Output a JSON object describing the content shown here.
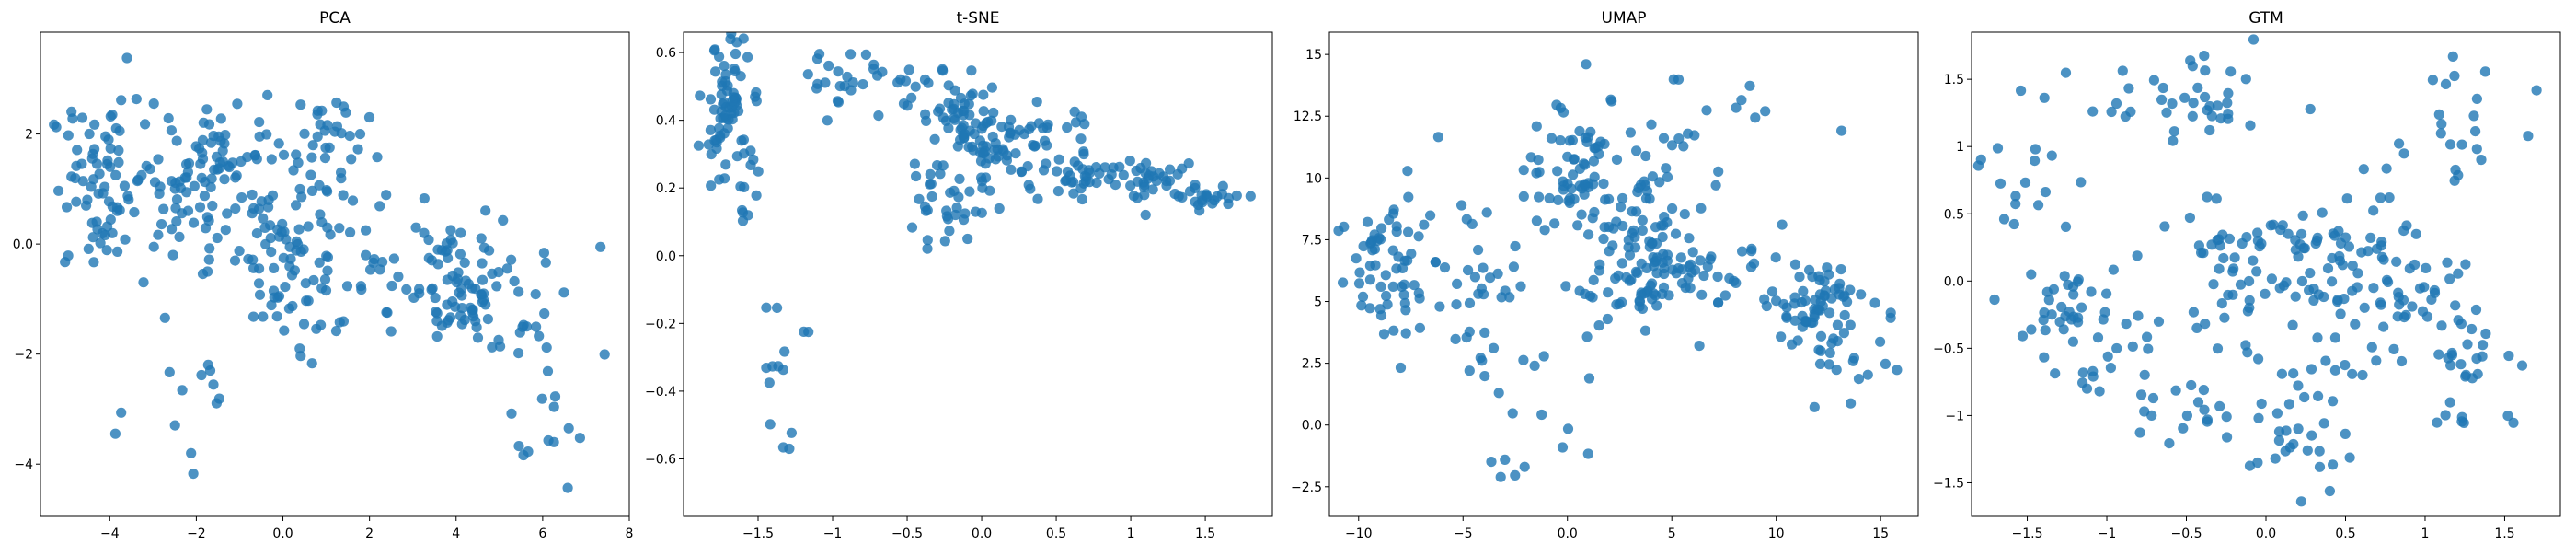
{
  "chart_data": [
    {
      "type": "scatter",
      "title": "PCA",
      "xlabel": "",
      "ylabel": "",
      "xlim": [
        -5.6,
        8.0
      ],
      "ylim": [
        -4.95,
        3.85
      ],
      "xticks": [
        -4,
        -2,
        0,
        2,
        4,
        6,
        8
      ],
      "yticks": [
        -4,
        -2,
        0,
        2
      ],
      "grid": false,
      "color": "#1f77b4",
      "clusters": [
        {
          "x": -4.2,
          "y": 1.0,
          "sx": 0.6,
          "sy": 0.8,
          "n": 70
        },
        {
          "x": -2.5,
          "y": 0.8,
          "sx": 0.7,
          "sy": 0.7,
          "n": 50
        },
        {
          "x": -1.2,
          "y": 1.5,
          "sx": 0.6,
          "sy": 0.6,
          "n": 55
        },
        {
          "x": 0.0,
          "y": 0.0,
          "sx": 0.5,
          "sy": 0.8,
          "n": 60
        },
        {
          "x": 1.0,
          "y": 1.8,
          "sx": 0.5,
          "sy": 0.5,
          "n": 35
        },
        {
          "x": 1.5,
          "y": -0.5,
          "sx": 0.8,
          "sy": 0.7,
          "n": 40
        },
        {
          "x": 4.0,
          "y": -0.8,
          "sx": 0.6,
          "sy": 0.6,
          "n": 80
        },
        {
          "x": 5.5,
          "y": -1.2,
          "sx": 0.8,
          "sy": 1.0,
          "n": 25
        },
        {
          "x": -2.5,
          "y": -3.0,
          "sx": 1.0,
          "sy": 1.0,
          "n": 16
        },
        {
          "x": 6.5,
          "y": -3.0,
          "sx": 0.7,
          "sy": 1.0,
          "n": 8
        }
      ]
    },
    {
      "type": "scatter",
      "title": "t-SNE",
      "xlabel": "",
      "ylabel": "",
      "xlim": [
        -2.0,
        1.95
      ],
      "ylim": [
        -0.77,
        0.66
      ],
      "xticks": [
        -1.5,
        -1.0,
        -0.5,
        0.0,
        0.5,
        1.0,
        1.5
      ],
      "yticks": [
        -0.6,
        -0.4,
        -0.2,
        0.0,
        0.2,
        0.4,
        0.6
      ],
      "grid": false,
      "color": "#1f77b4",
      "clusters": [
        {
          "x": -1.72,
          "y": 0.45,
          "sx": 0.08,
          "sy": 0.1,
          "n": 70
        },
        {
          "x": -1.6,
          "y": 0.2,
          "sx": 0.06,
          "sy": 0.08,
          "n": 15
        },
        {
          "x": -1.3,
          "y": -0.3,
          "sx": 0.1,
          "sy": 0.2,
          "n": 14
        },
        {
          "x": -0.8,
          "y": 0.52,
          "sx": 0.2,
          "sy": 0.04,
          "n": 30
        },
        {
          "x": -0.15,
          "y": 0.42,
          "sx": 0.15,
          "sy": 0.06,
          "n": 45
        },
        {
          "x": 0.0,
          "y": 0.28,
          "sx": 0.15,
          "sy": 0.06,
          "n": 45
        },
        {
          "x": -0.3,
          "y": 0.14,
          "sx": 0.15,
          "sy": 0.05,
          "n": 30
        },
        {
          "x": 0.35,
          "y": 0.35,
          "sx": 0.2,
          "sy": 0.05,
          "n": 30
        },
        {
          "x": 0.7,
          "y": 0.24,
          "sx": 0.2,
          "sy": 0.03,
          "n": 35
        },
        {
          "x": 1.15,
          "y": 0.22,
          "sx": 0.15,
          "sy": 0.03,
          "n": 35
        },
        {
          "x": 1.55,
          "y": 0.17,
          "sx": 0.12,
          "sy": 0.02,
          "n": 20
        }
      ]
    },
    {
      "type": "scatter",
      "title": "UMAP",
      "xlabel": "",
      "ylabel": "",
      "xlim": [
        -11.4,
        16.8
      ],
      "ylim": [
        -3.7,
        15.9
      ],
      "xticks": [
        -10,
        -5,
        0,
        5,
        10,
        15
      ],
      "yticks": [
        -2.5,
        0.0,
        2.5,
        5.0,
        7.5,
        10.0,
        12.5,
        15.0
      ],
      "grid": false,
      "color": "#1f77b4",
      "clusters": [
        {
          "x": -8.5,
          "y": 6.5,
          "sx": 1.3,
          "sy": 1.6,
          "n": 60
        },
        {
          "x": -4.5,
          "y": 6.0,
          "sx": 1.5,
          "sy": 2.0,
          "n": 40
        },
        {
          "x": 0.5,
          "y": 10.5,
          "sx": 1.2,
          "sy": 1.5,
          "n": 70
        },
        {
          "x": 4.0,
          "y": 8.0,
          "sx": 1.3,
          "sy": 1.3,
          "n": 60
        },
        {
          "x": 3.5,
          "y": 5.5,
          "sx": 1.5,
          "sy": 0.8,
          "n": 50
        },
        {
          "x": 7.5,
          "y": 6.0,
          "sx": 1.5,
          "sy": 1.0,
          "n": 35
        },
        {
          "x": 12.0,
          "y": 5.0,
          "sx": 1.0,
          "sy": 0.8,
          "n": 60
        },
        {
          "x": 13.5,
          "y": 2.5,
          "sx": 1.5,
          "sy": 1.0,
          "n": 20
        },
        {
          "x": -1.5,
          "y": 0.0,
          "sx": 1.5,
          "sy": 2.0,
          "n": 15
        },
        {
          "x": 6.0,
          "y": 11.5,
          "sx": 2.0,
          "sy": 1.2,
          "n": 20
        }
      ]
    },
    {
      "type": "scatter",
      "title": "GTM",
      "xlabel": "",
      "ylabel": "",
      "xlim": [
        -1.85,
        1.85
      ],
      "ylim": [
        -1.75,
        1.85
      ],
      "xticks": [
        -1.5,
        -1.0,
        -0.5,
        0.0,
        0.5,
        1.0,
        1.5
      ],
      "yticks": [
        -1.5,
        -1.0,
        -0.5,
        0.0,
        0.5,
        1.0,
        1.5
      ],
      "grid": false,
      "color": "#1f77b4",
      "clusters": [
        {
          "x": -1.2,
          "y": -0.3,
          "sx": 0.2,
          "sy": 0.25,
          "n": 50
        },
        {
          "x": -0.5,
          "y": 1.3,
          "sx": 0.35,
          "sy": 0.15,
          "n": 40
        },
        {
          "x": 0.0,
          "y": 0.1,
          "sx": 0.35,
          "sy": 0.3,
          "n": 80
        },
        {
          "x": 0.7,
          "y": -0.1,
          "sx": 0.25,
          "sy": 0.3,
          "n": 70
        },
        {
          "x": 1.3,
          "y": -0.6,
          "sx": 0.2,
          "sy": 0.3,
          "n": 30
        },
        {
          "x": 0.2,
          "y": -1.2,
          "sx": 0.15,
          "sy": 0.2,
          "n": 25
        },
        {
          "x": -1.5,
          "y": 0.8,
          "sx": 0.15,
          "sy": 0.2,
          "n": 15
        },
        {
          "x": 1.2,
          "y": 1.2,
          "sx": 0.3,
          "sy": 0.3,
          "n": 25
        },
        {
          "x": -0.3,
          "y": -0.8,
          "sx": 0.35,
          "sy": 0.3,
          "n": 30
        }
      ]
    }
  ]
}
